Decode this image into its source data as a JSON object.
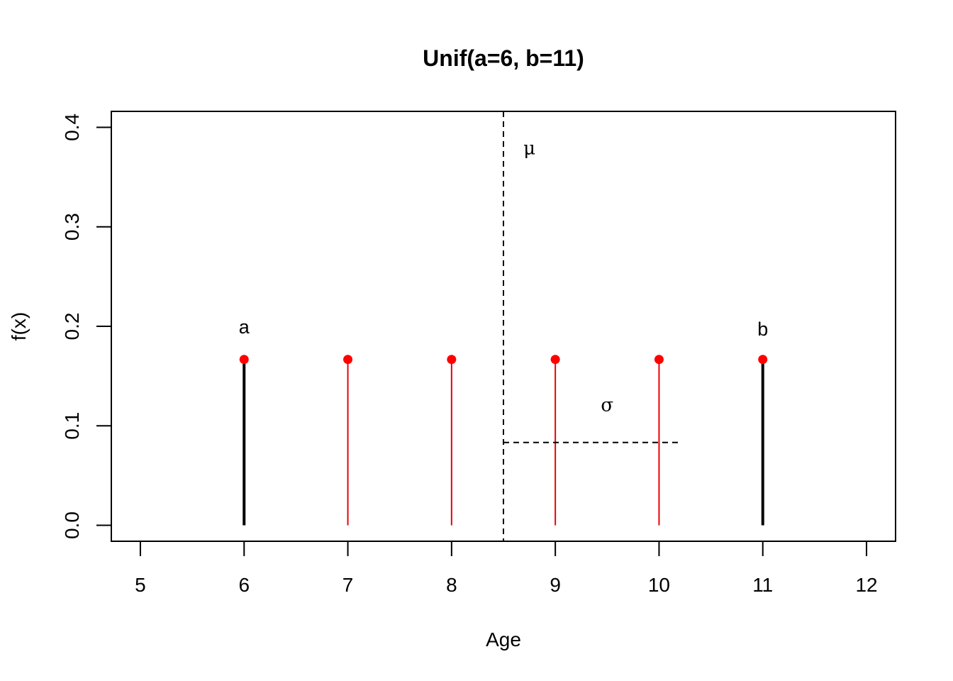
{
  "chart_data": {
    "type": "stem",
    "title": "Unif(a=6, b=11)",
    "xlabel": "Age",
    "ylabel": "f(x)",
    "xlim": [
      4.72,
      12.28
    ],
    "ylim": [
      -0.016,
      0.416
    ],
    "x_ticks": [
      "5",
      "6",
      "7",
      "8",
      "9",
      "10",
      "11",
      "12"
    ],
    "y_ticks": [
      "0.0",
      "0.1",
      "0.2",
      "0.3",
      "0.4"
    ],
    "x": [
      6,
      7,
      8,
      9,
      10,
      11
    ],
    "values": [
      0.1667,
      0.1667,
      0.1667,
      0.1667,
      0.1667,
      0.1667
    ],
    "endpoint_stems": [
      6,
      11
    ],
    "stem_color": "#e8000b",
    "endpoint_stem_color": "#000000",
    "point_color": "#ff0000",
    "mean": 8.5,
    "sigma_line": {
      "x_start": 8.5,
      "x_end": 10.21,
      "y": 0.0833
    },
    "annotations": [
      {
        "name": "a-label",
        "text": "a",
        "x": 6,
        "y": 0.2
      },
      {
        "name": "b-label",
        "text": "b",
        "x": 11,
        "y": 0.198
      },
      {
        "name": "mu-label",
        "text": "μ",
        "x": 8.75,
        "y": 0.38
      },
      {
        "name": "sigma-label",
        "text": "σ",
        "x": 9.5,
        "y": 0.122
      }
    ],
    "grid": false,
    "legend": false
  }
}
